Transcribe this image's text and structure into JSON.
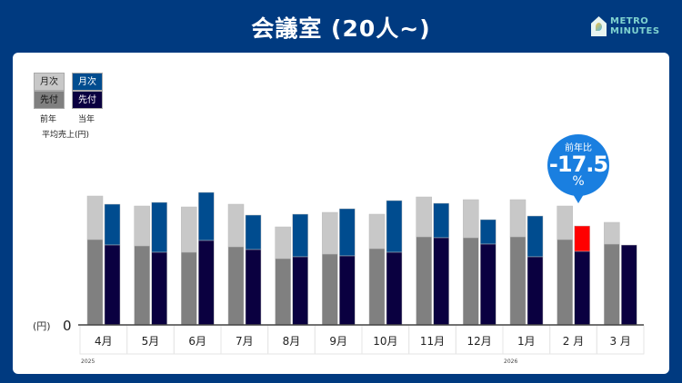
{
  "title": "会議室 (20人~)",
  "logo": {
    "line1": "METRO",
    "line2": "MINUTES"
  },
  "legend": {
    "monthly": "月次",
    "advance": "先付",
    "prev_year": "前年",
    "cur_year": "当年",
    "caption": "平均売上(円)"
  },
  "callout": {
    "label": "前年比",
    "value": "-17.5",
    "unit": "%"
  },
  "colors": {
    "prev_monthly": "#c8c8c8",
    "prev_advance": "#808080",
    "cur_monthly": "#004c8f",
    "cur_advance": "#0a0040",
    "highlight": "#ff0000",
    "bubble": "#1a7fe0"
  },
  "chart_data": {
    "type": "bar",
    "note": "stacked bars, relative units (no y-axis scale shown)",
    "yaxis_unit": "(円)",
    "yaxis_zero": "0",
    "categories": [
      "4月",
      "5月",
      "6月",
      "7月",
      "8月",
      "9月",
      "10月",
      "11月",
      "12月",
      "1月",
      "2 月",
      "3 月"
    ],
    "year_labels": [
      {
        "index": 0,
        "label": "2025"
      },
      {
        "index": 9,
        "label": "2026"
      }
    ],
    "series": [
      {
        "name": "前年 先付",
        "values": [
          94,
          87,
          80,
          86,
          73,
          78,
          84,
          97,
          96,
          97,
          94,
          89
        ]
      },
      {
        "name": "前年 月次 (total)",
        "values": [
          142,
          131,
          130,
          133,
          108,
          124,
          122,
          141,
          138,
          138,
          131,
          113
        ]
      },
      {
        "name": "当年 先付",
        "values": [
          88,
          80,
          93,
          83,
          75,
          76,
          80,
          96,
          89,
          75,
          81,
          88
        ]
      },
      {
        "name": "当年 月次 (total)",
        "values": [
          133,
          135,
          146,
          121,
          122,
          128,
          137,
          134,
          116,
          120,
          109,
          null
        ]
      }
    ],
    "highlight_index": 10,
    "ylim": [
      0,
      150
    ]
  }
}
